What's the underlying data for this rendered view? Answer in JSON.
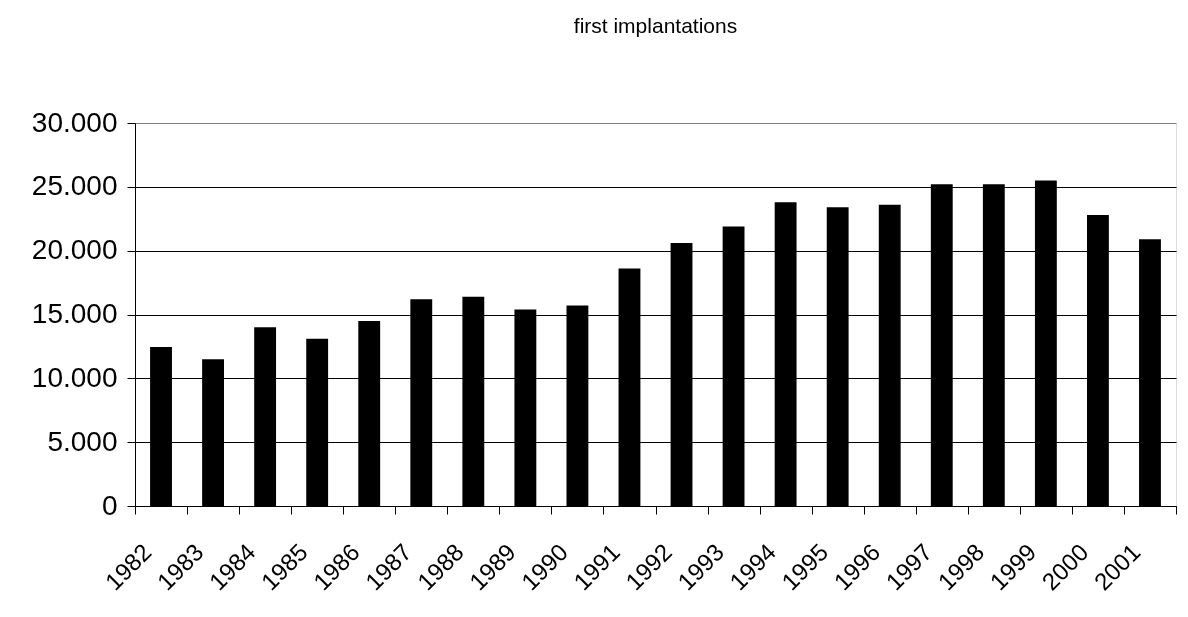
{
  "chart_data": {
    "type": "bar",
    "title": "first implantations",
    "categories": [
      "1982",
      "1983",
      "1984",
      "1985",
      "1986",
      "1987",
      "1988",
      "1989",
      "1990",
      "1991",
      "1992",
      "1993",
      "1994",
      "1995",
      "1996",
      "1997",
      "1998",
      "1999",
      "2000",
      "2001"
    ],
    "values": [
      12450,
      11500,
      14000,
      13100,
      14500,
      16200,
      16400,
      15400,
      15700,
      18600,
      20600,
      21900,
      23800,
      23400,
      23600,
      25200,
      25200,
      25500,
      22800,
      20900
    ],
    "color": "#000000",
    "ylim": [
      0,
      30000
    ],
    "yticks": [
      0,
      {
        "value": 5000,
        "label": "5.000"
      },
      {
        "value": 10000,
        "label": "10.000"
      },
      {
        "value": 15000,
        "label": "15.000"
      },
      {
        "value": 20000,
        "label": "20.000"
      },
      {
        "value": 25000,
        "label": "25.000"
      },
      {
        "value": 30000,
        "label": "30.000"
      }
    ],
    "grid": "y"
  }
}
